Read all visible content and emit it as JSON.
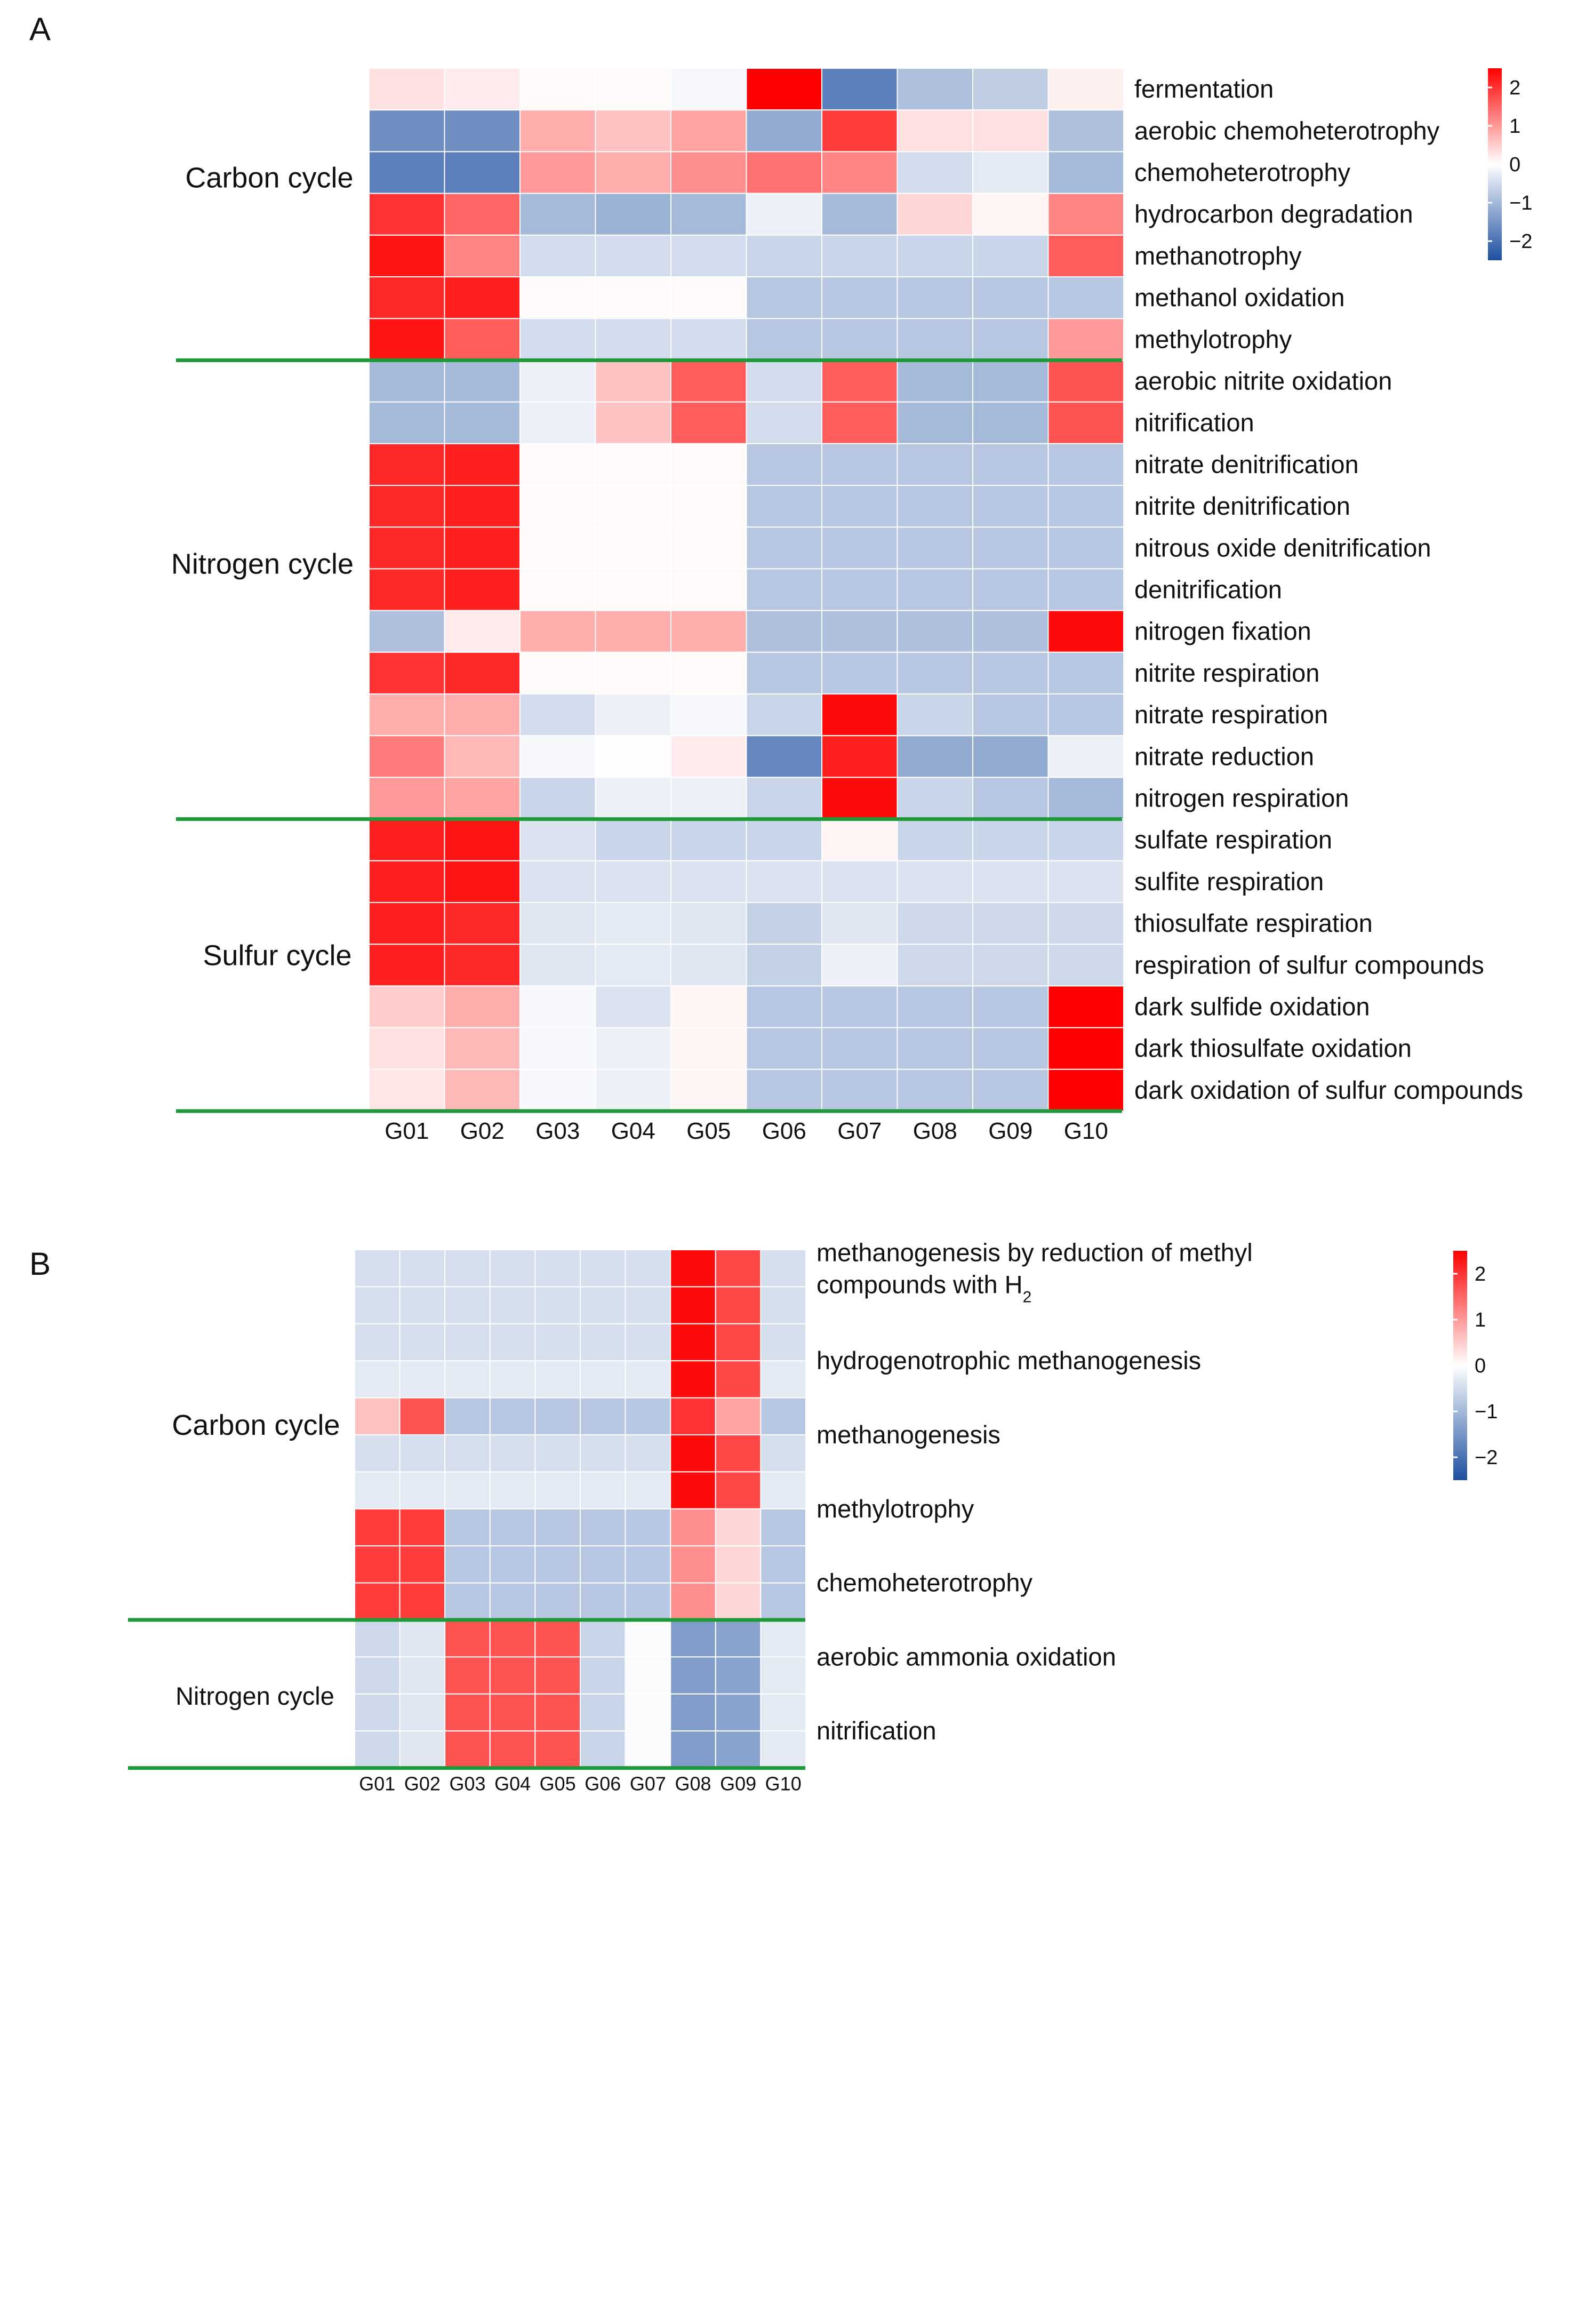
{
  "colors": {
    "low": "#1d4fa0",
    "mid": "#ffffff",
    "high": "#ff0000",
    "group_line": "#1e9a38"
  },
  "chart_data": [
    {
      "panel": "A",
      "type": "heatmap",
      "color_scale": {
        "min": -2.5,
        "mid": 0,
        "max": 2.5,
        "ticks": [
          "2",
          "1",
          "0",
          "−1",
          "−2"
        ]
      },
      "columns": [
        "G01",
        "G02",
        "G03",
        "G04",
        "G05",
        "G06",
        "G07",
        "G08",
        "G09",
        "G10"
      ],
      "groups": [
        {
          "label": "Carbon cycle",
          "rows": 7
        },
        {
          "label": "Nitrogen cycle",
          "rows": 11
        },
        {
          "label": "Sulfur cycle",
          "rows": 7
        }
      ],
      "rows": [
        "fermentation",
        "aerobic chemoheterotrophy",
        "chemoheterotrophy",
        "hydrocarbon degradation",
        "methanotrophy",
        "methanol oxidation",
        "methylotrophy",
        "aerobic nitrite oxidation",
        "nitrification",
        "nitrate denitrification",
        "nitrite denitrification",
        "nitrous oxide denitrification",
        "denitrification",
        "nitrogen fixation",
        "nitrite respiration",
        "nitrate respiration",
        "nitrate reduction",
        "nitrogen respiration",
        "sulfate respiration",
        "sulfite respiration",
        "thiosulfate respiration",
        "respiration of sulfur compounds",
        "dark sulfide oxidation",
        "dark thiosulfate oxidation",
        "dark oxidation of sulfur compounds"
      ],
      "values": [
        [
          0.3,
          0.2,
          0.05,
          0.05,
          -0.1,
          2.5,
          -1.8,
          -0.9,
          -0.7,
          0.15
        ],
        [
          -1.6,
          -1.6,
          0.8,
          0.6,
          0.9,
          -1.2,
          1.9,
          0.3,
          0.3,
          -0.9
        ],
        [
          -1.8,
          -1.8,
          1.0,
          0.8,
          1.1,
          1.4,
          1.2,
          -0.5,
          -0.3,
          -1.0
        ],
        [
          2.0,
          1.5,
          -1.0,
          -1.1,
          -1.0,
          -0.2,
          -1.0,
          0.4,
          0.1,
          1.2
        ],
        [
          2.3,
          1.2,
          -0.5,
          -0.5,
          -0.5,
          -0.6,
          -0.6,
          -0.6,
          -0.6,
          1.6
        ],
        [
          2.1,
          2.2,
          0.05,
          0.05,
          0.05,
          -0.8,
          -0.8,
          -0.8,
          -0.8,
          -0.8
        ],
        [
          2.3,
          1.6,
          -0.5,
          -0.5,
          -0.5,
          -0.8,
          -0.8,
          -0.8,
          -0.8,
          1.0
        ],
        [
          -1.0,
          -1.0,
          -0.2,
          0.6,
          1.6,
          -0.5,
          1.6,
          -1.0,
          -1.0,
          1.7
        ],
        [
          -1.0,
          -1.0,
          -0.2,
          0.6,
          1.6,
          -0.5,
          1.6,
          -1.0,
          -1.0,
          1.7
        ],
        [
          2.1,
          2.2,
          0.05,
          0.05,
          0.05,
          -0.8,
          -0.8,
          -0.8,
          -0.8,
          -0.8
        ],
        [
          2.1,
          2.2,
          0.05,
          0.05,
          0.05,
          -0.8,
          -0.8,
          -0.8,
          -0.8,
          -0.8
        ],
        [
          2.1,
          2.2,
          0.05,
          0.05,
          0.05,
          -0.8,
          -0.8,
          -0.8,
          -0.8,
          -0.8
        ],
        [
          2.1,
          2.2,
          0.05,
          0.05,
          0.05,
          -0.8,
          -0.8,
          -0.8,
          -0.8,
          -0.8
        ],
        [
          -0.9,
          0.2,
          0.8,
          0.8,
          0.8,
          -0.9,
          -0.9,
          -0.9,
          -0.9,
          2.4
        ],
        [
          2.0,
          2.1,
          0.05,
          0.05,
          0.05,
          -0.8,
          -0.8,
          -0.8,
          -0.8,
          -0.8
        ],
        [
          0.8,
          0.8,
          -0.5,
          -0.2,
          -0.1,
          -0.6,
          2.4,
          -0.6,
          -0.8,
          -0.8
        ],
        [
          1.3,
          0.7,
          -0.1,
          0.02,
          0.2,
          -1.7,
          2.2,
          -1.2,
          -1.2,
          -0.2
        ],
        [
          1.0,
          0.9,
          -0.6,
          -0.2,
          -0.2,
          -0.6,
          2.4,
          -0.6,
          -0.8,
          -1.0
        ],
        [
          2.2,
          2.3,
          -0.4,
          -0.6,
          -0.6,
          -0.6,
          0.1,
          -0.6,
          -0.6,
          -0.6
        ],
        [
          2.2,
          2.3,
          -0.4,
          -0.4,
          -0.4,
          -0.4,
          -0.4,
          -0.4,
          -0.4,
          -0.4
        ],
        [
          2.2,
          2.1,
          -0.35,
          -0.3,
          -0.35,
          -0.65,
          -0.35,
          -0.55,
          -0.55,
          -0.55
        ],
        [
          2.2,
          2.1,
          -0.35,
          -0.3,
          -0.35,
          -0.65,
          -0.2,
          -0.55,
          -0.55,
          -0.55
        ],
        [
          0.5,
          0.8,
          -0.1,
          -0.4,
          0.1,
          -0.8,
          -0.8,
          -0.8,
          -0.8,
          2.5
        ],
        [
          0.3,
          0.7,
          -0.1,
          -0.2,
          0.1,
          -0.8,
          -0.8,
          -0.8,
          -0.8,
          2.5
        ],
        [
          0.25,
          0.7,
          -0.1,
          -0.2,
          0.1,
          -0.8,
          -0.8,
          -0.8,
          -0.8,
          2.5
        ]
      ]
    },
    {
      "panel": "B",
      "type": "heatmap",
      "color_scale": {
        "min": -2.5,
        "mid": 0,
        "max": 2.5,
        "ticks": [
          "2",
          "1",
          "0",
          "−1",
          "−2"
        ]
      },
      "columns": [
        "G01",
        "G02",
        "G03",
        "G04",
        "G05",
        "G06",
        "G07",
        "G08",
        "G09",
        "G10"
      ],
      "groups": [
        {
          "label": "Carbon cycle",
          "rows": 10
        },
        {
          "label": "Nitrogen cycle",
          "rows": 4
        }
      ],
      "row_labels": [
        {
          "text": "methanogenesis by reduction of methyl",
          "line2": "compounds with H",
          "sub": "2"
        },
        {
          "text": "hydrogenotrophic methanogenesis"
        },
        {
          "text": "methanogenesis"
        },
        {
          "text": "methylotrophy"
        },
        {
          "text": "chemoheterotrophy"
        },
        {
          "text": "aerobic ammonia oxidation"
        },
        {
          "text": "nitrification"
        }
      ],
      "values": [
        [
          -0.45,
          -0.45,
          -0.45,
          -0.45,
          -0.45,
          -0.45,
          -0.45,
          2.4,
          1.8,
          -0.45
        ],
        [
          -0.45,
          -0.45,
          -0.45,
          -0.45,
          -0.45,
          -0.45,
          -0.45,
          2.4,
          1.8,
          -0.45
        ],
        [
          -0.45,
          -0.45,
          -0.45,
          -0.45,
          -0.45,
          -0.45,
          -0.45,
          2.4,
          1.8,
          -0.45
        ],
        [
          -0.3,
          -0.3,
          -0.3,
          -0.3,
          -0.3,
          -0.3,
          -0.3,
          2.4,
          1.8,
          -0.3
        ],
        [
          0.6,
          1.7,
          -0.8,
          -0.8,
          -0.8,
          -0.8,
          -0.8,
          2.0,
          0.9,
          -0.8
        ],
        [
          -0.45,
          -0.45,
          -0.45,
          -0.45,
          -0.45,
          -0.45,
          -0.45,
          2.4,
          1.8,
          -0.45
        ],
        [
          -0.3,
          -0.3,
          -0.3,
          -0.3,
          -0.3,
          -0.3,
          -0.3,
          2.4,
          1.8,
          -0.3
        ],
        [
          1.9,
          1.9,
          -0.8,
          -0.8,
          -0.8,
          -0.8,
          -0.8,
          1.1,
          0.4,
          -0.8
        ],
        [
          1.9,
          1.9,
          -0.8,
          -0.8,
          -0.8,
          -0.8,
          -0.8,
          1.1,
          0.4,
          -0.8
        ],
        [
          1.9,
          1.9,
          -0.8,
          -0.8,
          -0.8,
          -0.8,
          -0.8,
          1.1,
          0.4,
          -0.8
        ],
        [
          -0.55,
          -0.35,
          1.7,
          1.7,
          1.7,
          -0.6,
          -0.05,
          -1.4,
          -1.3,
          -0.3
        ],
        [
          -0.55,
          -0.35,
          1.7,
          1.7,
          1.7,
          -0.6,
          -0.05,
          -1.4,
          -1.3,
          -0.3
        ],
        [
          -0.55,
          -0.35,
          1.7,
          1.7,
          1.7,
          -0.6,
          -0.05,
          -1.4,
          -1.3,
          -0.3
        ],
        [
          -0.55,
          -0.35,
          1.7,
          1.7,
          1.7,
          -0.6,
          -0.05,
          -1.4,
          -1.3,
          -0.3
        ]
      ]
    }
  ]
}
